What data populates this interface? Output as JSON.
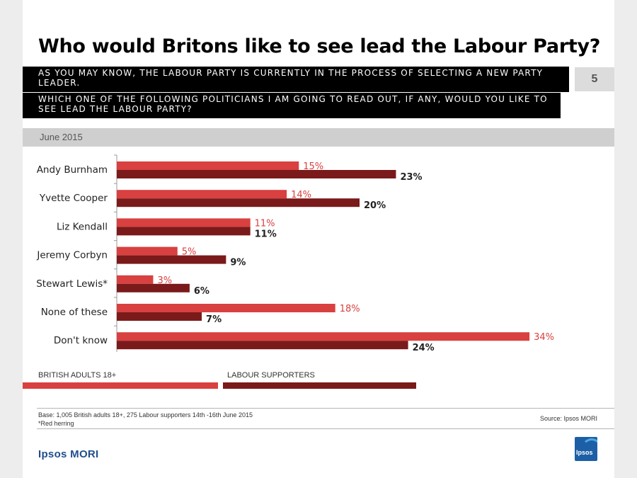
{
  "title": "Who would Britons like to see lead the Labour Party?",
  "question_1": "As you may know, the Labour party is currently in the process of selecting a new party leader.",
  "question_2": "Which one of the following politicians I am going to read out, if any, would you like to see lead the Labour party?",
  "page_number": "5",
  "date_label": "June 2015",
  "colors": {
    "series_1": "#d94040",
    "series_2": "#7a1a1a"
  },
  "chart_data": {
    "type": "bar",
    "orientation": "horizontal",
    "title": "Who would Britons like to see lead the Labour Party?",
    "categories": [
      "Andy Burnham",
      "Yvette Cooper",
      "Liz Kendall",
      "Jeremy Corbyn",
      "Stewart Lewis*",
      "None of these",
      "Don't know"
    ],
    "series": [
      {
        "name": "BRITISH ADULTS 18+",
        "values": [
          15,
          14,
          11,
          5,
          3,
          18,
          34
        ],
        "labels": [
          "15%",
          "14%",
          "11%",
          "5%",
          "3%",
          "18%",
          "34%"
        ]
      },
      {
        "name": "LABOUR SUPPORTERS",
        "values": [
          23,
          20,
          11,
          9,
          6,
          7,
          24
        ],
        "labels": [
          "23%",
          "20%",
          "11%",
          "9%",
          "6%",
          "7%",
          "24%"
        ]
      }
    ],
    "unit": "%",
    "xlim": [
      0,
      35
    ]
  },
  "legend": {
    "series_1_label": "BRITISH ADULTS 18+",
    "series_2_label": "LABOUR SUPPORTERS"
  },
  "footer": {
    "base": "Base: 1,005 British adults 18+, 275 Labour supporters 14th -16th June 2015",
    "note": "*Red herring",
    "source": "Source: Ipsos MORI",
    "brand": "Ipsos MORI",
    "logo_text": "Ipsos"
  }
}
